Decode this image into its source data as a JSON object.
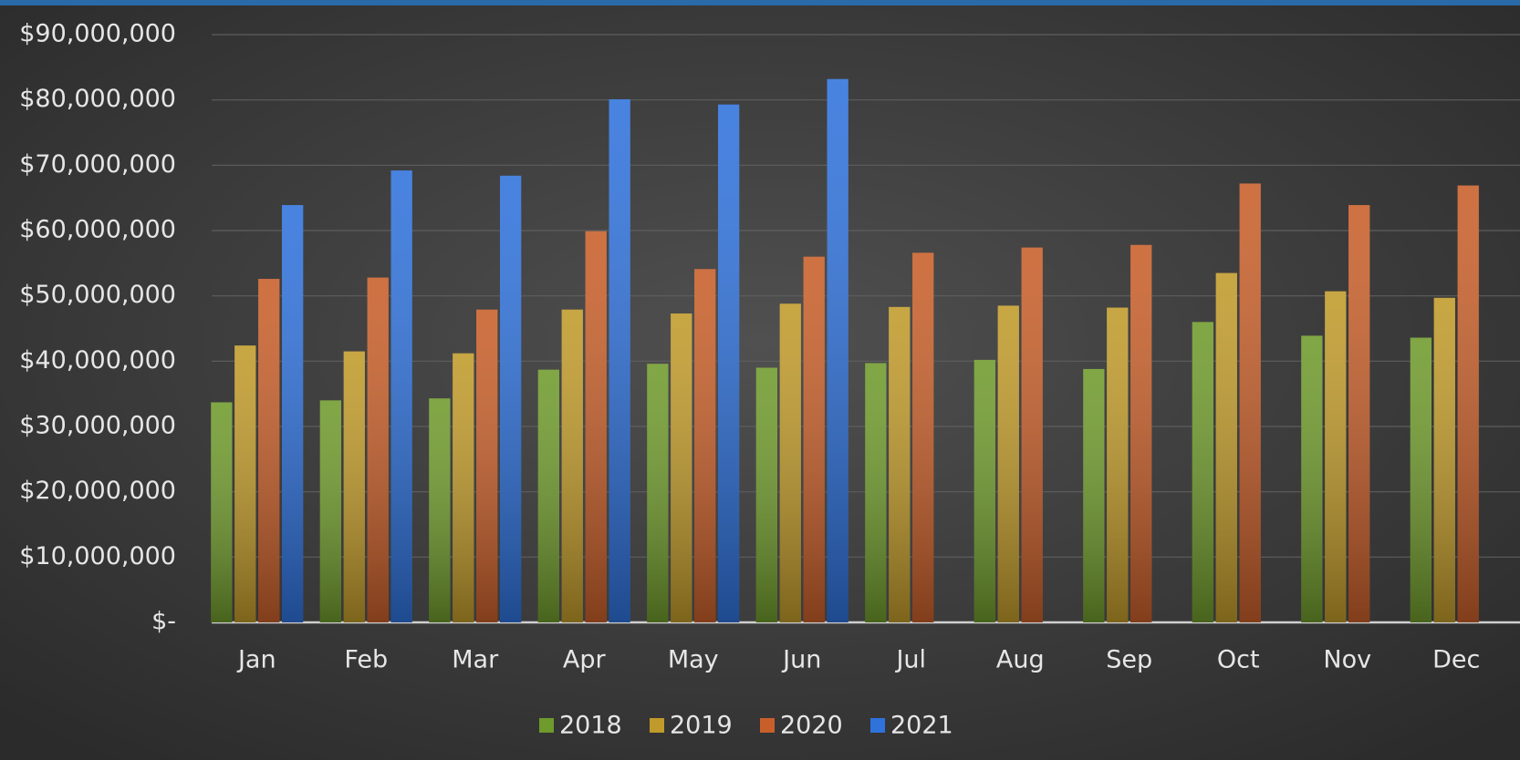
{
  "chart_data": {
    "type": "bar",
    "categories": [
      "Jan",
      "Feb",
      "Mar",
      "Apr",
      "May",
      "Jun",
      "Jul",
      "Aug",
      "Sep",
      "Oct",
      "Nov",
      "Dec"
    ],
    "series": [
      {
        "name": "2018",
        "color": "#6f9a2c",
        "values": [
          33700000,
          34000000,
          34300000,
          38700000,
          39600000,
          39000000,
          39700000,
          40200000,
          38800000,
          46000000,
          43900000,
          43600000
        ]
      },
      {
        "name": "2019",
        "color": "#c09a2a",
        "values": [
          42400000,
          41500000,
          41200000,
          47900000,
          47300000,
          48800000,
          48300000,
          48500000,
          48200000,
          53500000,
          50700000,
          49700000
        ]
      },
      {
        "name": "2020",
        "color": "#c85f2a",
        "values": [
          52600000,
          52800000,
          47900000,
          59900000,
          54100000,
          56000000,
          56600000,
          57400000,
          57800000,
          67200000,
          63900000,
          66900000
        ]
      },
      {
        "name": "2021",
        "color": "#2f72dc",
        "values": [
          63900000,
          69200000,
          68400000,
          80100000,
          79300000,
          83200000,
          null,
          null,
          null,
          null,
          null,
          null
        ]
      }
    ],
    "ylim": [
      0,
      90000000
    ],
    "yticks": [
      {
        "value": 0,
        "label": "$-"
      },
      {
        "value": 10000000,
        "label": "$10,000,000"
      },
      {
        "value": 20000000,
        "label": "$20,000,000"
      },
      {
        "value": 30000000,
        "label": "$30,000,000"
      },
      {
        "value": 40000000,
        "label": "$40,000,000"
      },
      {
        "value": 50000000,
        "label": "$50,000,000"
      },
      {
        "value": 60000000,
        "label": "$60,000,000"
      },
      {
        "value": 70000000,
        "label": "$70,000,000"
      },
      {
        "value": 80000000,
        "label": "$80,000,000"
      },
      {
        "value": 90000000,
        "label": "$90,000,000"
      }
    ],
    "grid": true,
    "legend": "bottom"
  }
}
